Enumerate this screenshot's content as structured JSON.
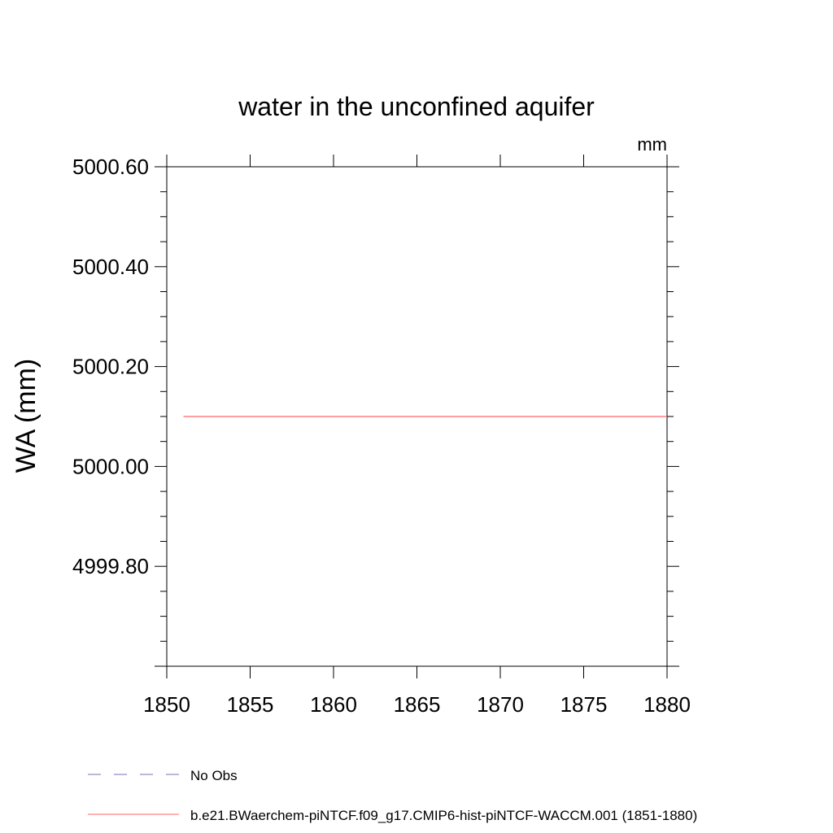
{
  "chart_data": {
    "type": "line",
    "title": "water in the unconfined aquifer",
    "units": "mm",
    "ylabel": "WA  (mm)",
    "xlabel": "",
    "xlim": [
      1850,
      1880
    ],
    "ylim": [
      4999.6,
      5000.6
    ],
    "x_ticks": [
      1850,
      1855,
      1860,
      1865,
      1870,
      1875,
      1880
    ],
    "y_ticks": [
      4999.8,
      5000.0,
      5000.2,
      5000.4,
      5000.6
    ],
    "y_tick_labels": [
      "4999.80",
      "5000.00",
      "5000.20",
      "5000.40",
      "5000.60"
    ],
    "grid": false,
    "legend_position": "bottom",
    "series": [
      {
        "name": "b.e21.BWaerchem-piNTCF.f09_g17.CMIP6-hist-piNTCF-WACCM.001 (1851-1880)",
        "color": "#ff6666",
        "style": "solid",
        "x": [
          1851,
          1880
        ],
        "y": [
          5000.1,
          5000.1
        ]
      }
    ],
    "legend": [
      {
        "label": "No Obs",
        "color": "#7a6fb0",
        "style": "dashed"
      },
      {
        "label": "b.e21.BWaerchem-piNTCF.f09_g17.CMIP6-hist-piNTCF-WACCM.001 (1851-1880)",
        "color": "#ff6666",
        "style": "solid"
      }
    ]
  }
}
